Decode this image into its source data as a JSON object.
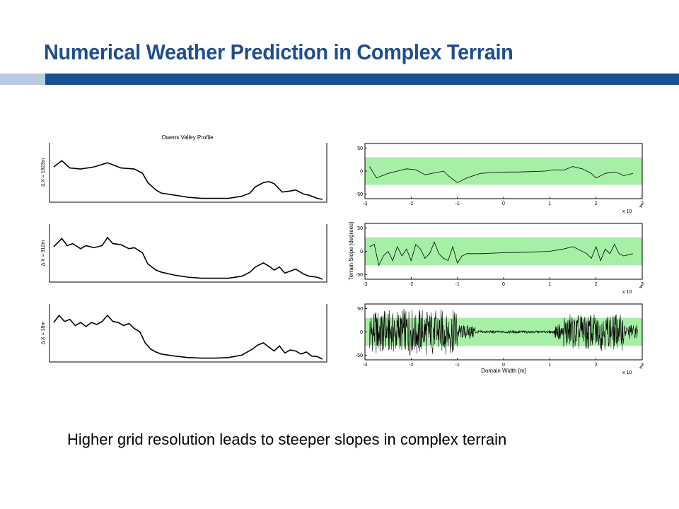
{
  "slide": {
    "title": "Numerical Weather Prediction in Complex Terrain",
    "caption": "Higher grid resolution leads to steeper slopes in complex terrain",
    "colors": {
      "title": "#1f4e8c",
      "bar": "#1b4f93",
      "bar_left": "#b9cbe2",
      "band": "#a6f0a6"
    }
  },
  "chart_data": [
    {
      "type": "line",
      "title": "Owens Valley Profile",
      "panels": [
        {
          "ylabel": "Δ X = 1823m",
          "x": [
            0,
            0.03,
            0.06,
            0.1,
            0.15,
            0.2,
            0.25,
            0.3,
            0.33,
            0.35,
            0.38,
            0.4,
            0.45,
            0.5,
            0.55,
            0.6,
            0.65,
            0.7,
            0.73,
            0.75,
            0.78,
            0.8,
            0.82,
            0.85,
            0.88,
            0.9,
            0.93,
            0.95,
            0.98,
            1
          ],
          "y": [
            0.62,
            0.74,
            0.6,
            0.58,
            0.62,
            0.7,
            0.6,
            0.58,
            0.5,
            0.32,
            0.18,
            0.12,
            0.08,
            0.04,
            0.02,
            0.02,
            0.02,
            0.06,
            0.12,
            0.24,
            0.32,
            0.34,
            0.3,
            0.14,
            0.16,
            0.18,
            0.1,
            0.08,
            0.02,
            0.0
          ]
        },
        {
          "ylabel": "Δ X = 912m",
          "x": [
            0,
            0.03,
            0.05,
            0.07,
            0.1,
            0.12,
            0.15,
            0.18,
            0.2,
            0.22,
            0.25,
            0.28,
            0.3,
            0.33,
            0.35,
            0.38,
            0.4,
            0.45,
            0.5,
            0.55,
            0.6,
            0.65,
            0.7,
            0.73,
            0.75,
            0.78,
            0.8,
            0.82,
            0.84,
            0.86,
            0.88,
            0.9,
            0.93,
            0.95,
            0.98,
            1
          ],
          "y": [
            0.64,
            0.8,
            0.66,
            0.7,
            0.6,
            0.66,
            0.62,
            0.66,
            0.82,
            0.7,
            0.68,
            0.6,
            0.62,
            0.52,
            0.3,
            0.18,
            0.14,
            0.08,
            0.04,
            0.02,
            0.02,
            0.02,
            0.06,
            0.14,
            0.24,
            0.32,
            0.26,
            0.18,
            0.24,
            0.12,
            0.16,
            0.2,
            0.1,
            0.06,
            0.04,
            0.0
          ]
        },
        {
          "ylabel": "Δ X = 18m",
          "x": [
            0,
            0.02,
            0.04,
            0.06,
            0.08,
            0.1,
            0.12,
            0.14,
            0.16,
            0.18,
            0.2,
            0.22,
            0.24,
            0.26,
            0.28,
            0.3,
            0.32,
            0.34,
            0.36,
            0.38,
            0.4,
            0.45,
            0.5,
            0.55,
            0.6,
            0.65,
            0.7,
            0.72,
            0.74,
            0.76,
            0.78,
            0.8,
            0.82,
            0.84,
            0.86,
            0.88,
            0.9,
            0.92,
            0.94,
            0.96,
            0.98,
            1
          ],
          "y": [
            0.72,
            0.86,
            0.74,
            0.78,
            0.66,
            0.72,
            0.64,
            0.72,
            0.68,
            0.74,
            0.86,
            0.74,
            0.72,
            0.66,
            0.7,
            0.6,
            0.54,
            0.32,
            0.2,
            0.14,
            0.1,
            0.06,
            0.03,
            0.02,
            0.02,
            0.03,
            0.08,
            0.14,
            0.2,
            0.28,
            0.32,
            0.24,
            0.16,
            0.26,
            0.12,
            0.18,
            0.16,
            0.1,
            0.14,
            0.06,
            0.05,
            0.0
          ]
        }
      ]
    },
    {
      "type": "line",
      "ylabel": "Terrain Slope [degrees]",
      "xlabel": "Domain Width [m]",
      "x_ticks": [
        "-3",
        "-2",
        "-1",
        "0",
        "1",
        "2",
        "3"
      ],
      "y_ticks": [
        "50",
        "0",
        "-50"
      ],
      "x_exponent": "x 10",
      "x_exponent_power": "4",
      "xlim": [
        -3,
        3
      ],
      "ylim": [
        -60,
        60
      ],
      "band": [
        -30,
        30
      ],
      "panels": [
        {
          "x": [
            -2.9,
            -2.75,
            -2.5,
            -2.3,
            -2.1,
            -1.9,
            -1.7,
            -1.5,
            -1.3,
            -1.2,
            -1.0,
            -0.8,
            -0.5,
            -0.2,
            0.1,
            0.3,
            0.6,
            0.9,
            1.1,
            1.3,
            1.5,
            1.7,
            1.9,
            2.0,
            2.2,
            2.4,
            2.5,
            2.6,
            2.8
          ],
          "y": [
            10,
            -15,
            -5,
            0,
            5,
            3,
            -8,
            -4,
            0,
            -10,
            -25,
            -15,
            -5,
            -3,
            -2,
            -2,
            -1,
            0,
            3,
            2,
            10,
            5,
            -5,
            -15,
            -5,
            -2,
            -5,
            -10,
            -5
          ]
        },
        {
          "x": [
            -2.9,
            -2.8,
            -2.7,
            -2.6,
            -2.5,
            -2.4,
            -2.3,
            -2.2,
            -2.1,
            -2.0,
            -1.9,
            -1.8,
            -1.7,
            -1.6,
            -1.5,
            -1.4,
            -1.3,
            -1.2,
            -1.1,
            -1.0,
            -0.9,
            -0.8,
            -0.5,
            0,
            0.5,
            1.0,
            1.3,
            1.5,
            1.8,
            1.9,
            2.0,
            2.1,
            2.2,
            2.3,
            2.4,
            2.5,
            2.6,
            2.8
          ],
          "y": [
            10,
            15,
            -30,
            -10,
            0,
            -20,
            10,
            -10,
            5,
            -20,
            15,
            5,
            -15,
            -5,
            20,
            -5,
            -15,
            -20,
            10,
            -25,
            -10,
            -5,
            -5,
            -3,
            -2,
            0,
            5,
            10,
            -5,
            -15,
            10,
            -20,
            5,
            -5,
            15,
            -5,
            -10,
            -5
          ]
        },
        {
          "x": [],
          "y": []
        }
      ]
    }
  ]
}
